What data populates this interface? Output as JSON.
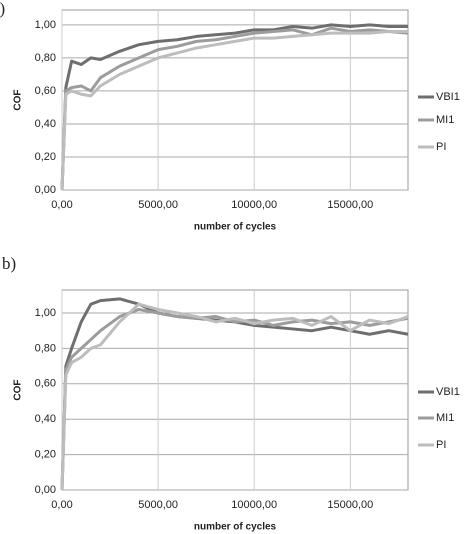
{
  "chart_data": [
    {
      "type": "line",
      "panel_label": "a)",
      "x_label": "number of cycles",
      "y_label": "COF",
      "x": [
        0,
        200,
        500,
        1000,
        1500,
        2000,
        3000,
        4000,
        5000,
        6000,
        7000,
        8000,
        9000,
        10000,
        11000,
        12000,
        13000,
        14000,
        15000,
        16000,
        17000,
        18000
      ],
      "series": [
        {
          "name": "VBI1",
          "color": "#6e6e6e",
          "values": [
            0,
            0.62,
            0.78,
            0.76,
            0.8,
            0.79,
            0.84,
            0.88,
            0.9,
            0.91,
            0.93,
            0.94,
            0.95,
            0.97,
            0.97,
            0.99,
            0.98,
            1.0,
            0.99,
            1.0,
            0.99,
            0.99
          ]
        },
        {
          "name": "MI1",
          "color": "#9c9c9c",
          "values": [
            0,
            0.6,
            0.62,
            0.63,
            0.6,
            0.68,
            0.75,
            0.8,
            0.85,
            0.87,
            0.9,
            0.91,
            0.93,
            0.95,
            0.96,
            0.97,
            0.94,
            0.98,
            0.96,
            0.97,
            0.96,
            0.95
          ]
        },
        {
          "name": "PI",
          "color": "#bdbdbd",
          "values": [
            0,
            0.58,
            0.6,
            0.58,
            0.57,
            0.63,
            0.7,
            0.75,
            0.8,
            0.83,
            0.86,
            0.88,
            0.9,
            0.92,
            0.92,
            0.93,
            0.94,
            0.95,
            0.95,
            0.95,
            0.96,
            0.96
          ]
        }
      ],
      "xlim": [
        0,
        18000
      ],
      "xticks": [
        {
          "value": 0,
          "label": "0,00"
        },
        {
          "value": 5000,
          "label": "5000,00"
        },
        {
          "value": 10000,
          "label": "10000,00"
        },
        {
          "value": 15000,
          "label": "15000,00"
        }
      ],
      "ylim": [
        0,
        1.09
      ],
      "yticks": [
        {
          "value": 0,
          "label": "0,00"
        },
        {
          "value": 0.2,
          "label": "0,20"
        },
        {
          "value": 0.4,
          "label": "0,40"
        },
        {
          "value": 0.6,
          "label": "0,60"
        },
        {
          "value": 0.8,
          "label": "0,80"
        },
        {
          "value": 1,
          "label": "1,00"
        }
      ],
      "grid": true,
      "legend": "right"
    },
    {
      "type": "line",
      "panel_label": "b)",
      "x_label": "number of cycles",
      "y_label": "COF",
      "x": [
        0,
        200,
        500,
        1000,
        1500,
        2000,
        3000,
        4000,
        5000,
        6000,
        7000,
        8000,
        9000,
        10000,
        11000,
        12000,
        13000,
        14000,
        15000,
        16000,
        17000,
        18000
      ],
      "series": [
        {
          "name": "VBI1",
          "color": "#6e6e6e",
          "values": [
            0,
            0.7,
            0.8,
            0.95,
            1.05,
            1.07,
            1.08,
            1.05,
            1.0,
            0.98,
            0.97,
            0.96,
            0.95,
            0.93,
            0.92,
            0.91,
            0.9,
            0.92,
            0.9,
            0.88,
            0.9,
            0.88
          ]
        },
        {
          "name": "MI1",
          "color": "#9c9c9c",
          "values": [
            0,
            0.68,
            0.75,
            0.8,
            0.85,
            0.9,
            0.98,
            1.02,
            1.0,
            0.98,
            0.97,
            0.98,
            0.95,
            0.96,
            0.93,
            0.95,
            0.96,
            0.94,
            0.95,
            0.93,
            0.95,
            0.97
          ]
        },
        {
          "name": "PI",
          "color": "#bdbdbd",
          "values": [
            0,
            0.65,
            0.72,
            0.75,
            0.8,
            0.82,
            0.95,
            1.05,
            1.02,
            1.0,
            0.98,
            0.95,
            0.97,
            0.94,
            0.96,
            0.97,
            0.93,
            0.98,
            0.9,
            0.96,
            0.94,
            0.98
          ]
        }
      ],
      "xlim": [
        0,
        18000
      ],
      "xticks": [
        {
          "value": 0,
          "label": "0,00"
        },
        {
          "value": 5000,
          "label": "5000,00"
        },
        {
          "value": 10000,
          "label": "10000,00"
        },
        {
          "value": 15000,
          "label": "15000,00"
        }
      ],
      "ylim": [
        0,
        1.13
      ],
      "yticks": [
        {
          "value": 0,
          "label": "0,00"
        },
        {
          "value": 0.2,
          "label": "0,20"
        },
        {
          "value": 0.4,
          "label": "0,40"
        },
        {
          "value": 0.6,
          "label": "0,60"
        },
        {
          "value": 0.8,
          "label": "0,80"
        },
        {
          "value": 1,
          "label": "1,00"
        }
      ],
      "grid": true,
      "legend": "right"
    }
  ]
}
